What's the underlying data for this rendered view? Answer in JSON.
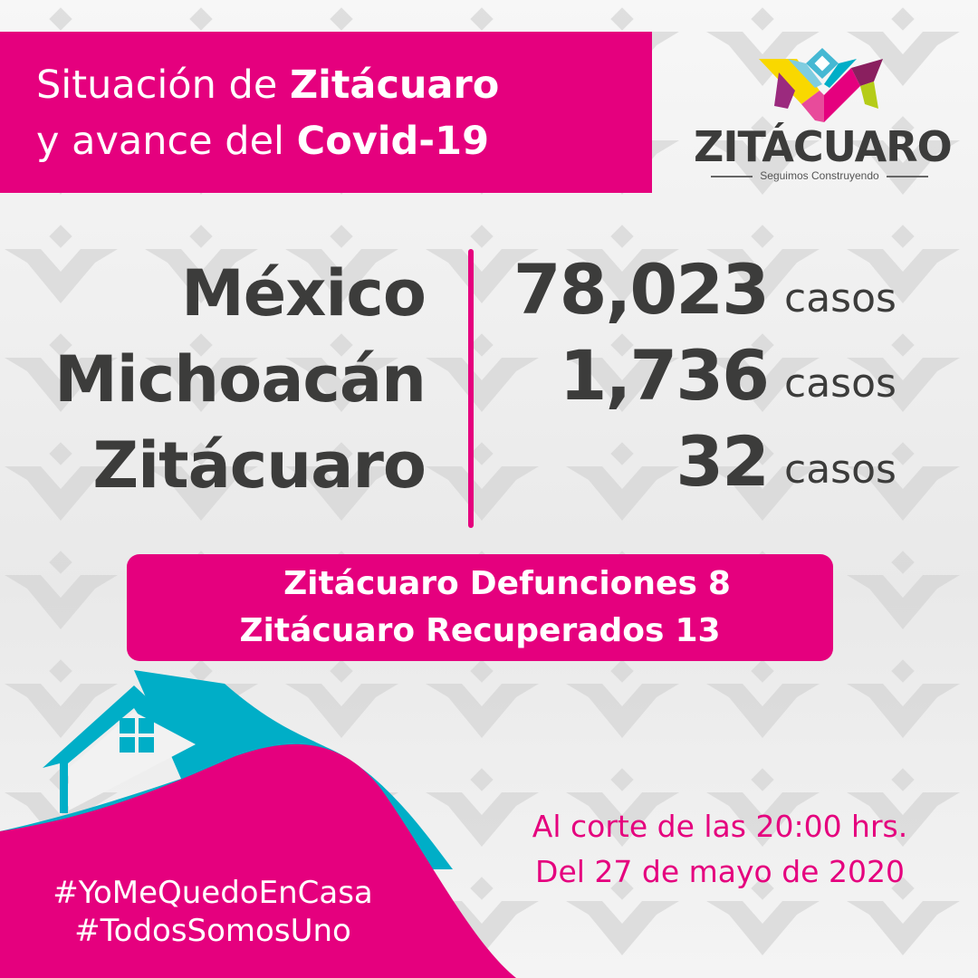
{
  "title": {
    "line1_regular": "Situación de ",
    "line1_bold": "Zitácuaro",
    "line2_regular": "y avance del ",
    "line2_bold": "Covid-19"
  },
  "logo": {
    "wordmark": "ZITÁCUARO",
    "tagline": "Seguimos Construyendo"
  },
  "cases": [
    {
      "place": "México",
      "count": "78,023",
      "unit": "casos"
    },
    {
      "place": "Michoacán",
      "count": "1,736",
      "unit": "casos"
    },
    {
      "place": "Zitácuaro",
      "count": "32",
      "unit": "casos"
    }
  ],
  "local_stats": [
    {
      "place": "Zitácuaro",
      "label": "Defunciones",
      "value": "8"
    },
    {
      "place": "Zitácuaro",
      "label": "Recuperados",
      "value": "13"
    }
  ],
  "cutoff": {
    "line1": "Al corte de las 20:00 hrs.",
    "line2": "Del 27 de mayo de 2020"
  },
  "hashtags": [
    "#YoMeQuedoEnCasa",
    "#TodosSomosUno"
  ],
  "colors": {
    "brand_pink": "#e5007e",
    "teal": "#00aec7",
    "text_dark": "#3c3c3b"
  }
}
